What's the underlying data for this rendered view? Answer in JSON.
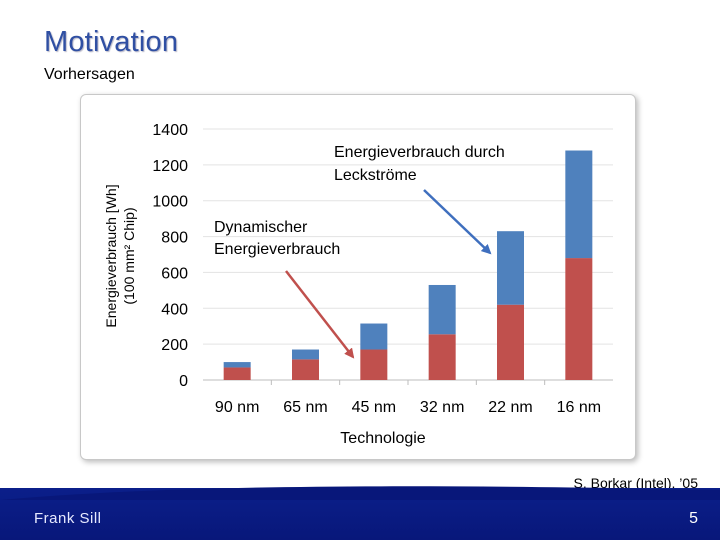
{
  "slide": {
    "title": "Motivation",
    "subtitle": "Vorhersagen",
    "credit": "S. Borkar (Intel), ’05",
    "author": "Frank Sill",
    "page_number": "5"
  },
  "colors": {
    "title": "#2f4fa3",
    "dynamic": "#c0504d",
    "leakage": "#4f81bd",
    "arrow_red": "#c0504d",
    "arrow_blue": "#3f6fbe",
    "footer": "#08177a"
  },
  "chart_data": {
    "type": "bar",
    "stacked": true,
    "categories": [
      "90 nm",
      "65 nm",
      "45 nm",
      "32 nm",
      "22 nm",
      "16 nm"
    ],
    "series": [
      {
        "name": "Dynamischer Energieverbrauch",
        "values": [
          70,
          115,
          170,
          255,
          420,
          680
        ]
      },
      {
        "name": "Energieverbrauch durch Leckströme",
        "values": [
          30,
          55,
          145,
          275,
          410,
          600
        ]
      }
    ],
    "ylim": [
      0,
      1400
    ],
    "yticks": [
      "0",
      "200",
      "400",
      "600",
      "800",
      "1000",
      "1200",
      "1400"
    ],
    "ylabel_line1": "Energieverbrauch [Wh]",
    "ylabel_line2": "(100 mm² Chip)",
    "xlabel": "Technologie",
    "grid": true,
    "annotations": {
      "leakage_line1": "Energieverbrauch durch",
      "leakage_line2": "Leckströme",
      "dynamic_line1": "Dynamischer",
      "dynamic_line2": "Energieverbrauch"
    }
  }
}
